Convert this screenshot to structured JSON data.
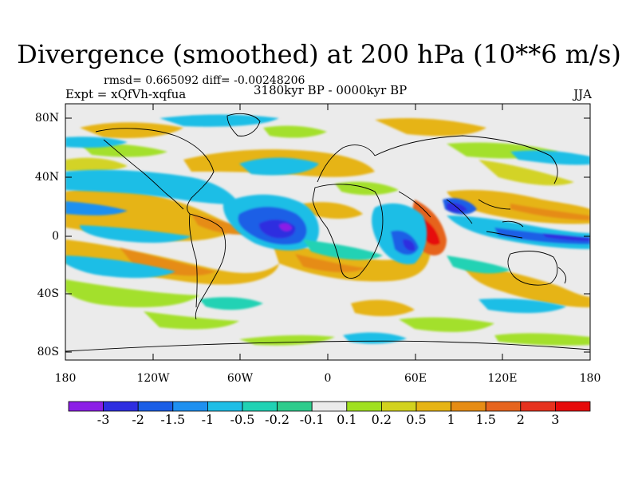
{
  "title": "Divergence (smoothed) at 200 hPa (10**6 m/s)",
  "stats": "rmsd= 0.665092 diff= -0.00248206",
  "experiment": "Expt = xQfVh-xqfua",
  "period": "3180kyr BP - 0000kyr BP",
  "season": "JJA",
  "y_axis_labels": [
    "80N",
    "40N",
    "0",
    "40S",
    "80S"
  ],
  "x_axis_labels": [
    "180",
    "120W",
    "60W",
    "0",
    "60E",
    "120E",
    "180"
  ],
  "colorbar": {
    "labels": [
      "-3",
      "-2",
      "-1.5",
      "-1",
      "-0.5",
      "-0.2",
      "-0.1",
      "0.1",
      "0.2",
      "0.5",
      "1",
      "1.5",
      "2",
      "3"
    ],
    "colors": [
      "#8c1fe6",
      "#2e2ee0",
      "#1a5ee6",
      "#1e90f0",
      "#1ebee6",
      "#20d2b4",
      "#2ecc8c",
      "#ebebeb",
      "#a0e020",
      "#d2d21e",
      "#e6b414",
      "#e68c14",
      "#e6641e",
      "#e6321e",
      "#e60a0a"
    ]
  },
  "colors": {
    "ocean_bg": "#ebebeb",
    "coast": "#000000"
  }
}
